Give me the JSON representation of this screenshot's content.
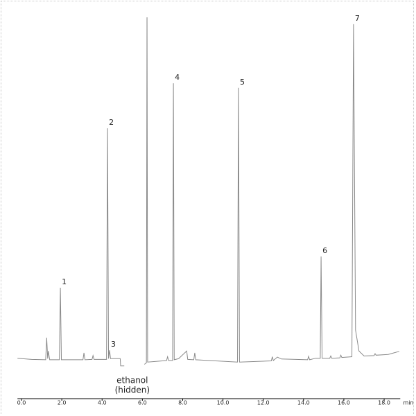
{
  "chart_data": {
    "type": "line",
    "xlabel": "min",
    "xlim": [
      -0.2,
      18.8
    ],
    "ylim": [
      0,
      100
    ],
    "xticks": [
      {
        "value": 0,
        "label": "0.0"
      },
      {
        "value": 2,
        "label": "2.0"
      },
      {
        "value": 4,
        "label": "4.0"
      },
      {
        "value": 6,
        "label": "6.0"
      },
      {
        "value": 8,
        "label": "8.0"
      },
      {
        "value": 10,
        "label": "10.0"
      },
      {
        "value": 12,
        "label": "12.0"
      },
      {
        "value": 14,
        "label": "14.0"
      },
      {
        "value": 16,
        "label": "16.0"
      },
      {
        "value": 18,
        "label": "18.0"
      }
    ],
    "series": [
      {
        "color": "#8a8a8a",
        "x": [
          -0.2,
          0.5,
          1.2,
          1.25,
          1.3,
          1.33,
          1.4,
          1.88,
          1.93,
          1.98,
          3.05,
          3.1,
          3.15,
          3.5,
          3.55,
          3.6,
          4.22,
          4.27,
          4.32,
          4.37,
          4.42,
          4.9,
          4.92,
          5.1,
          5.6,
          6.1,
          6.2,
          6.23,
          6.26,
          7.2,
          7.25,
          7.3,
          7.5,
          7.54,
          7.58,
          7.8,
          8.0,
          8.2,
          8.25,
          8.55,
          8.6,
          8.65,
          10.72,
          10.77,
          10.82,
          12.4,
          12.45,
          12.5,
          12.7,
          12.9,
          14.2,
          14.25,
          14.3,
          14.6,
          14.83,
          14.87,
          14.92,
          15.3,
          15.35,
          15.4,
          15.8,
          15.85,
          15.9,
          16.4,
          16.48,
          16.58,
          16.75,
          17.0,
          17.5,
          17.55,
          17.6,
          18.2,
          18.75
        ],
        "y": [
          10.6,
          10.3,
          10.2,
          16.0,
          10.5,
          12.5,
          10.2,
          10.2,
          29.1,
          10.2,
          10.2,
          12.0,
          10.2,
          10.3,
          11.3,
          10.3,
          10.3,
          70.9,
          10.5,
          12.7,
          10.5,
          10.5,
          8.6,
          8.6,
          null,
          9.0,
          9.4,
          105,
          9.6,
          10.0,
          11.0,
          10.0,
          10.0,
          82.7,
          10.2,
          10.5,
          11.5,
          12.5,
          10.3,
          10.2,
          12.0,
          10.2,
          9.6,
          81.5,
          9.6,
          9.9,
          11.0,
          10.0,
          10.9,
          10.4,
          10.2,
          11.1,
          10.2,
          10.6,
          10.6,
          37.3,
          10.6,
          10.6,
          11.2,
          10.6,
          10.7,
          11.4,
          10.8,
          11.0,
          98.2,
          18.0,
          12.5,
          11.2,
          11.3,
          11.8,
          11.4,
          11.6,
          12.4
        ]
      }
    ],
    "annotations": [
      {
        "text": "1",
        "x": 1.93,
        "y": 29.1
      },
      {
        "text": "2",
        "x": 4.27,
        "y": 70.9
      },
      {
        "text": "3",
        "x": 4.37,
        "y": 12.7
      },
      {
        "text": "4",
        "x": 7.54,
        "y": 82.7
      },
      {
        "text": "5",
        "x": 10.77,
        "y": 81.5
      },
      {
        "text": "6",
        "x": 14.87,
        "y": 37.3
      },
      {
        "text": "7",
        "x": 16.48,
        "y": 98.2
      },
      {
        "text": [
          "ethanol",
          "(hidden)"
        ],
        "x": 5.5,
        "y": 3.5
      }
    ]
  }
}
